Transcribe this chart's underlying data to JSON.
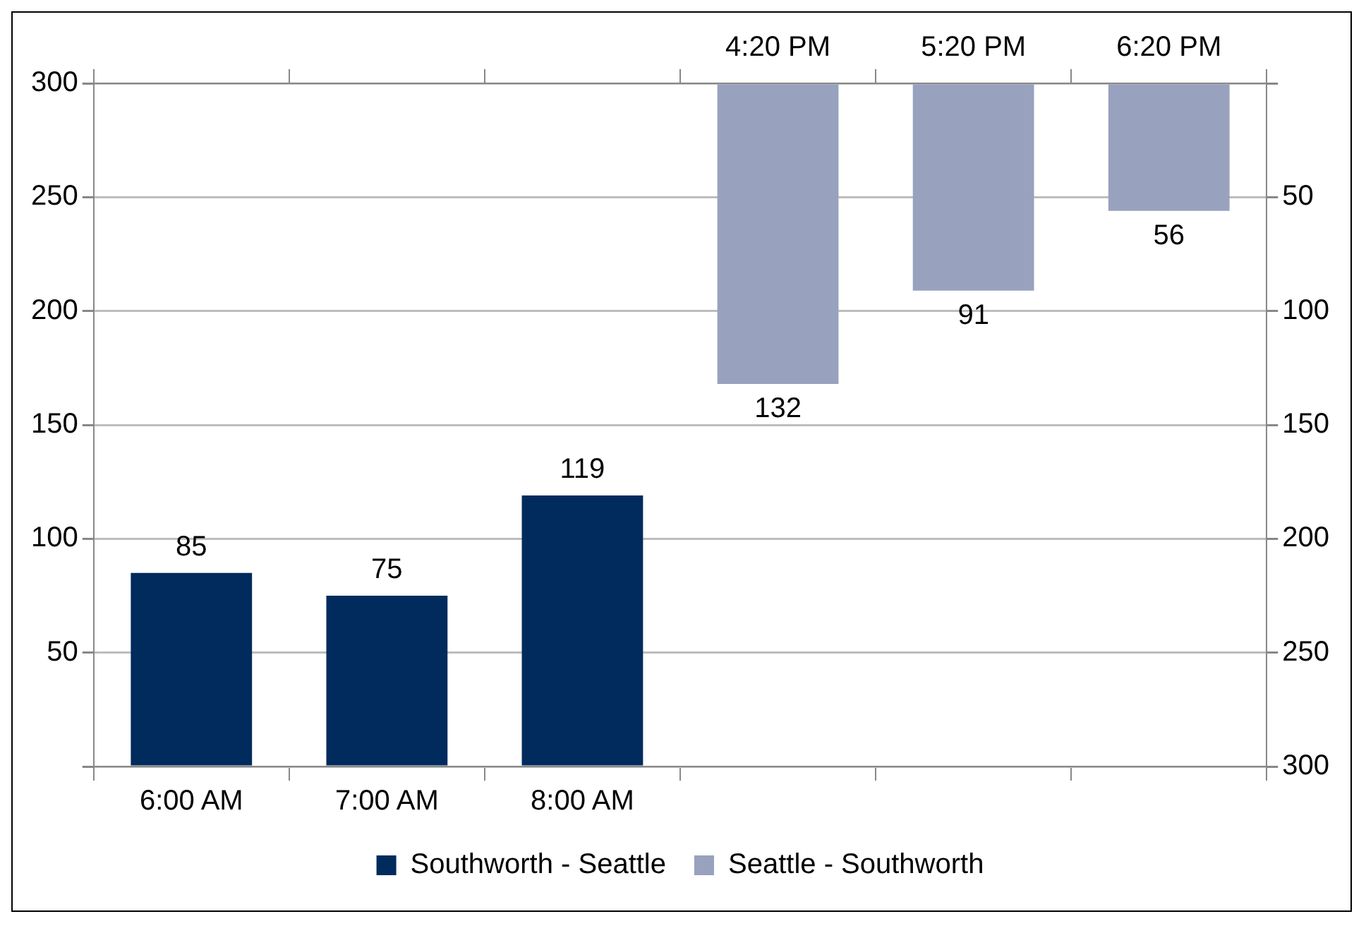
{
  "chart_data": {
    "type": "bar",
    "categories": [
      "6:00 AM",
      "7:00 AM",
      "8:00 AM",
      "4:20 PM",
      "5:20 PM",
      "6:20 PM"
    ],
    "series": [
      {
        "name": "Southworth - Seattle",
        "color": "#002b5c",
        "values": [
          85,
          75,
          119,
          null,
          null,
          null
        ]
      },
      {
        "name": "Seattle - Southworth",
        "color": "#98a2be",
        "axis": "y2",
        "values": [
          null,
          null,
          null,
          132,
          91,
          56
        ]
      }
    ],
    "ylim": [
      0,
      300
    ],
    "yticks": [
      {
        "value": 0,
        "label": null
      },
      50,
      100,
      150,
      200,
      250,
      300
    ],
    "y2lim": [
      300,
      0
    ],
    "y2ticks": [
      {
        "value": 0,
        "label": null
      },
      50,
      100,
      150,
      200,
      250,
      300
    ],
    "grid": "y",
    "legend": "bottom",
    "data_labels": true
  }
}
